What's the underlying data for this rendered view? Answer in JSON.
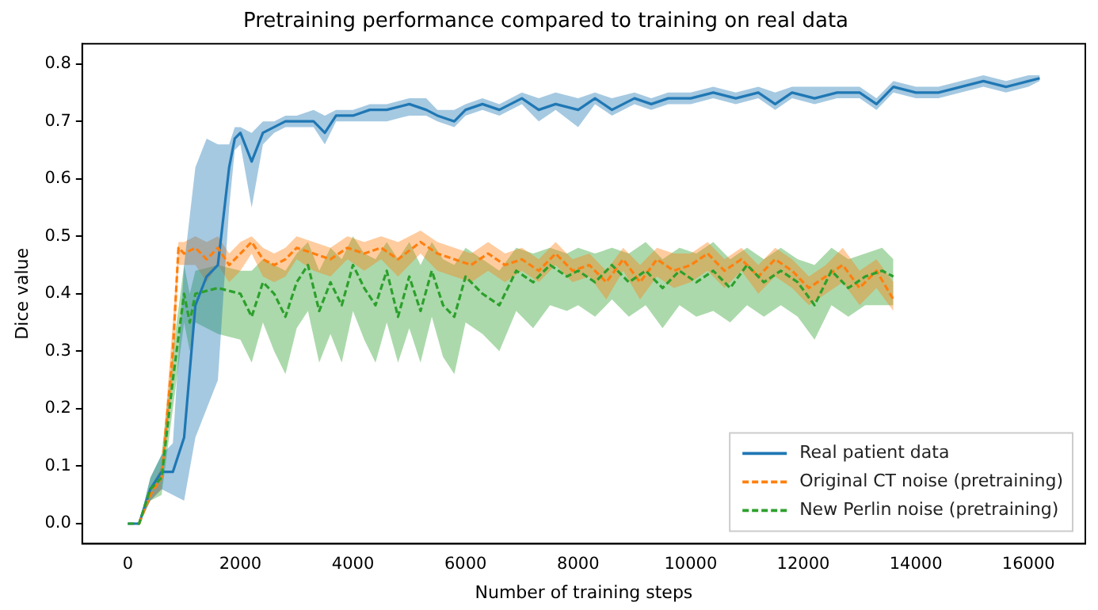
{
  "chart_data": {
    "type": "line",
    "title": "Pretraining performance compared to training on real data",
    "xlabel": "Number of training steps",
    "ylabel": "Dice value",
    "xlim": [
      -810,
      17010
    ],
    "xticks": [
      0,
      2000,
      4000,
      6000,
      8000,
      10000,
      12000,
      14000,
      16000
    ],
    "ylim": [
      -0.035,
      0.835
    ],
    "yticks": [
      {
        "value": 0,
        "label": "0.0"
      },
      {
        "value": 0.1,
        "label": "0.1"
      },
      {
        "value": 0.2,
        "label": "0.2"
      },
      {
        "value": 0.3,
        "label": "0.3"
      },
      {
        "value": 0.4,
        "label": "0.4"
      },
      {
        "value": 0.5,
        "label": "0.5"
      },
      {
        "value": 0.6,
        "label": "0.6"
      },
      {
        "value": 0.7,
        "label": "0.7"
      },
      {
        "value": 0.8,
        "label": "0.8"
      }
    ],
    "grid": false,
    "legend": "bottom right",
    "marker": "none",
    "series": [
      {
        "name": "Real patient data",
        "color": "#1f77b4",
        "line_style": "solid",
        "x": [
          0,
          200,
          400,
          600,
          800,
          1000,
          1200,
          1400,
          1600,
          1800,
          1900,
          2000,
          2200,
          2400,
          2600,
          2800,
          3000,
          3300,
          3500,
          3700,
          4000,
          4300,
          4600,
          5000,
          5300,
          5500,
          5800,
          6000,
          6300,
          6600,
          7000,
          7300,
          7600,
          8000,
          8300,
          8600,
          9000,
          9300,
          9600,
          10000,
          10400,
          10800,
          11200,
          11500,
          11800,
          12200,
          12600,
          13000,
          13300,
          13600,
          14000,
          14400,
          14800,
          15200,
          15600,
          16000,
          16200
        ],
        "values": [
          0,
          0,
          0.06,
          0.09,
          0.09,
          0.15,
          0.38,
          0.43,
          0.45,
          0.62,
          0.67,
          0.68,
          0.63,
          0.68,
          0.69,
          0.7,
          0.7,
          0.7,
          0.68,
          0.71,
          0.71,
          0.72,
          0.72,
          0.73,
          0.72,
          0.71,
          0.7,
          0.72,
          0.73,
          0.72,
          0.74,
          0.72,
          0.73,
          0.72,
          0.74,
          0.72,
          0.74,
          0.73,
          0.74,
          0.74,
          0.75,
          0.74,
          0.75,
          0.73,
          0.75,
          0.74,
          0.75,
          0.75,
          0.73,
          0.76,
          0.75,
          0.75,
          0.76,
          0.77,
          0.76,
          0.77,
          0.775
        ],
        "lower": [
          0,
          0,
          0.04,
          0.06,
          0.05,
          0.04,
          0.15,
          0.2,
          0.25,
          0.55,
          0.65,
          0.66,
          0.55,
          0.66,
          0.68,
          0.69,
          0.69,
          0.69,
          0.66,
          0.7,
          0.7,
          0.7,
          0.7,
          0.71,
          0.71,
          0.7,
          0.69,
          0.71,
          0.72,
          0.71,
          0.73,
          0.7,
          0.72,
          0.69,
          0.73,
          0.71,
          0.73,
          0.72,
          0.73,
          0.73,
          0.74,
          0.73,
          0.74,
          0.72,
          0.74,
          0.73,
          0.74,
          0.74,
          0.72,
          0.75,
          0.74,
          0.74,
          0.75,
          0.76,
          0.75,
          0.76,
          0.77
        ],
        "upper": [
          0,
          0,
          0.08,
          0.12,
          0.14,
          0.45,
          0.62,
          0.67,
          0.66,
          0.66,
          0.69,
          0.69,
          0.68,
          0.7,
          0.7,
          0.71,
          0.71,
          0.72,
          0.71,
          0.72,
          0.72,
          0.73,
          0.73,
          0.74,
          0.74,
          0.72,
          0.72,
          0.73,
          0.74,
          0.73,
          0.75,
          0.74,
          0.75,
          0.74,
          0.75,
          0.74,
          0.75,
          0.74,
          0.75,
          0.75,
          0.76,
          0.75,
          0.76,
          0.75,
          0.76,
          0.76,
          0.76,
          0.76,
          0.74,
          0.77,
          0.76,
          0.76,
          0.77,
          0.78,
          0.77,
          0.78,
          0.78
        ]
      },
      {
        "name": "Original CT noise (pretraining)",
        "color": "#ff7f0e",
        "line_style": "dashed",
        "x": [
          0,
          200,
          400,
          600,
          800,
          900,
          1000,
          1200,
          1400,
          1600,
          1800,
          2000,
          2200,
          2400,
          2600,
          2800,
          3000,
          3300,
          3600,
          3900,
          4200,
          4500,
          4800,
          5200,
          5500,
          5800,
          6100,
          6400,
          6700,
          7000,
          7300,
          7600,
          7900,
          8200,
          8500,
          8800,
          9100,
          9400,
          9700,
          10000,
          10300,
          10600,
          10900,
          11200,
          11500,
          11800,
          12100,
          12400,
          12700,
          13000,
          13300,
          13600
        ],
        "values": [
          null,
          0,
          0.05,
          0.08,
          0.3,
          0.48,
          0.47,
          0.48,
          0.46,
          0.48,
          0.45,
          0.47,
          0.49,
          0.46,
          0.45,
          0.46,
          0.48,
          0.47,
          0.46,
          0.48,
          0.47,
          0.48,
          0.46,
          0.49,
          0.47,
          0.46,
          0.45,
          0.47,
          0.45,
          0.46,
          0.44,
          0.47,
          0.44,
          0.45,
          0.42,
          0.46,
          0.42,
          0.46,
          0.44,
          0.45,
          0.47,
          0.44,
          0.46,
          0.43,
          0.46,
          0.44,
          0.41,
          0.43,
          0.45,
          0.41,
          0.44,
          0.39
        ],
        "lower": [
          0,
          0,
          0.04,
          0.06,
          0.25,
          0.45,
          0.45,
          0.45,
          0.42,
          0.45,
          0.42,
          0.44,
          0.47,
          0.43,
          0.42,
          0.43,
          0.46,
          0.44,
          0.43,
          0.46,
          0.44,
          0.46,
          0.43,
          0.47,
          0.44,
          0.43,
          0.42,
          0.44,
          0.42,
          0.44,
          0.42,
          0.45,
          0.42,
          0.43,
          0.39,
          0.44,
          0.39,
          0.43,
          0.41,
          0.42,
          0.44,
          0.41,
          0.44,
          0.4,
          0.43,
          0.41,
          0.38,
          0.4,
          0.42,
          0.38,
          0.41,
          0.37
        ],
        "upper": [
          0,
          0,
          0.06,
          0.1,
          0.35,
          0.49,
          0.49,
          0.5,
          0.49,
          0.5,
          0.47,
          0.49,
          0.5,
          0.48,
          0.47,
          0.48,
          0.5,
          0.49,
          0.48,
          0.5,
          0.49,
          0.5,
          0.49,
          0.51,
          0.49,
          0.48,
          0.47,
          0.49,
          0.47,
          0.48,
          0.46,
          0.49,
          0.46,
          0.47,
          0.44,
          0.48,
          0.45,
          0.48,
          0.47,
          0.47,
          0.49,
          0.46,
          0.48,
          0.45,
          0.48,
          0.46,
          0.43,
          0.45,
          0.48,
          0.44,
          0.46,
          0.42
        ]
      },
      {
        "name": "New Perlin noise (pretraining)",
        "color": "#2ca02c",
        "line_style": "dashed",
        "x": [
          0,
          200,
          400,
          600,
          800,
          1000,
          1100,
          1200,
          1600,
          2000,
          2200,
          2400,
          2600,
          2800,
          3000,
          3200,
          3400,
          3600,
          3800,
          4000,
          4200,
          4400,
          4600,
          4800,
          5000,
          5200,
          5400,
          5600,
          5800,
          6000,
          6300,
          6600,
          6900,
          7200,
          7500,
          7800,
          8000,
          8300,
          8600,
          8900,
          9200,
          9500,
          9800,
          10100,
          10400,
          10700,
          11000,
          11300,
          11600,
          11900,
          12200,
          12500,
          12800,
          13100,
          13400,
          13600
        ],
        "values": [
          0,
          0,
          0.06,
          0.08,
          0.25,
          0.4,
          0.35,
          0.4,
          0.41,
          0.4,
          0.36,
          0.42,
          0.4,
          0.36,
          0.42,
          0.45,
          0.37,
          0.42,
          0.38,
          0.45,
          0.41,
          0.38,
          0.44,
          0.36,
          0.43,
          0.37,
          0.44,
          0.38,
          0.36,
          0.43,
          0.4,
          0.38,
          0.44,
          0.42,
          0.45,
          0.43,
          0.44,
          0.42,
          0.45,
          0.42,
          0.44,
          0.41,
          0.44,
          0.42,
          0.44,
          0.41,
          0.45,
          0.42,
          0.44,
          0.42,
          0.38,
          0.44,
          0.41,
          0.43,
          0.44,
          0.43
        ],
        "lower": [
          0,
          0,
          0.04,
          0.05,
          0.2,
          0.35,
          0.3,
          0.35,
          0.33,
          0.32,
          0.28,
          0.35,
          0.3,
          0.26,
          0.34,
          0.37,
          0.28,
          0.33,
          0.28,
          0.37,
          0.32,
          0.28,
          0.35,
          0.28,
          0.34,
          0.28,
          0.36,
          0.29,
          0.26,
          0.35,
          0.33,
          0.3,
          0.37,
          0.34,
          0.38,
          0.37,
          0.38,
          0.36,
          0.39,
          0.36,
          0.38,
          0.34,
          0.38,
          0.36,
          0.37,
          0.35,
          0.38,
          0.36,
          0.38,
          0.36,
          0.32,
          0.38,
          0.36,
          0.38,
          0.38,
          0.38
        ],
        "upper": [
          0,
          0,
          0.08,
          0.12,
          0.3,
          0.45,
          0.4,
          0.44,
          0.45,
          0.44,
          0.44,
          0.46,
          0.45,
          0.44,
          0.47,
          0.49,
          0.44,
          0.48,
          0.46,
          0.5,
          0.47,
          0.46,
          0.49,
          0.46,
          0.49,
          0.45,
          0.49,
          0.46,
          0.45,
          0.48,
          0.46,
          0.44,
          0.48,
          0.47,
          0.48,
          0.47,
          0.48,
          0.47,
          0.48,
          0.47,
          0.49,
          0.46,
          0.48,
          0.47,
          0.49,
          0.46,
          0.48,
          0.46,
          0.48,
          0.46,
          0.45,
          0.48,
          0.46,
          0.47,
          0.48,
          0.46
        ]
      }
    ]
  }
}
